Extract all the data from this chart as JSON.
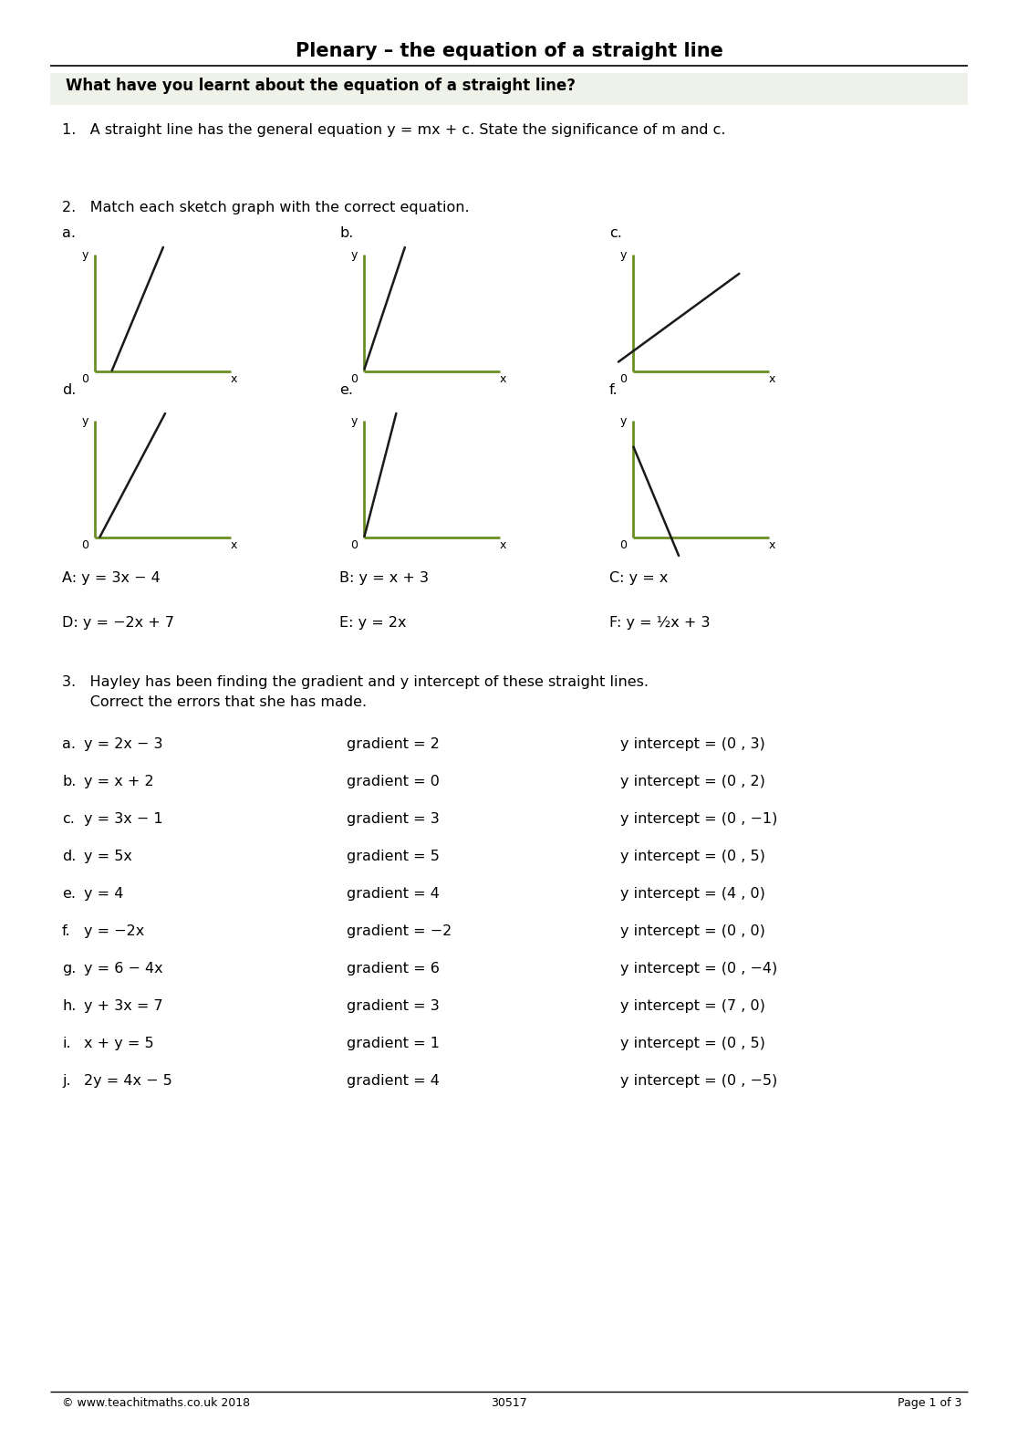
{
  "title": "Plenary – the equation of a straight line",
  "section_bg": "#eef2e8",
  "section_question": "What have you learnt about the equation of a straight line?",
  "q1_text": "1.   A straight line has the general equation y = mx + c. State the significance of m and c.",
  "q2_text": "2.   Match each sketch graph with the correct equation.",
  "graph_labels": [
    "a.",
    "b.",
    "c.",
    "d.",
    "e.",
    "f."
  ],
  "equations": [
    "A: y = 3x − 4",
    "B: y = x + 3",
    "C: y = x",
    "D: y = −2x + 7",
    "E: y = 2x",
    "F: y = ½x + 3"
  ],
  "q3_line1": "3.   Hayley has been finding the gradient and y intercept of these straight lines.",
  "q3_line2": "      Correct the errors that she has made.",
  "q3_rows": [
    {
      "label": "a.",
      "eq": "y = 2x − 3",
      "grad": "gradient = 2",
      "yint": "y intercept = (0 , 3)"
    },
    {
      "label": "b.",
      "eq": "y = x + 2",
      "grad": "gradient = 0",
      "yint": "y intercept = (0 , 2)"
    },
    {
      "label": "c.",
      "eq": "y = 3x − 1",
      "grad": "gradient = 3",
      "yint": "y intercept = (0 , −1)"
    },
    {
      "label": "d.",
      "eq": "y = 5x",
      "grad": "gradient = 5",
      "yint": "y intercept = (0 , 5)"
    },
    {
      "label": "e.",
      "eq": "y = 4",
      "grad": "gradient = 4",
      "yint": "y intercept = (4 , 0)"
    },
    {
      "label": "f.",
      "eq": "y = −2x",
      "grad": "gradient = −2",
      "yint": "y intercept = (0 , 0)"
    },
    {
      "label": "g.",
      "eq": "y = 6 − 4x",
      "grad": "gradient = 6",
      "yint": "y intercept = (0 , −4)"
    },
    {
      "label": "h.",
      "eq": "y + 3x = 7",
      "grad": "gradient = 3",
      "yint": "y intercept = (7 , 0)"
    },
    {
      "label": "i.",
      "eq": "x + y = 5",
      "grad": "gradient = 1",
      "yint": "y intercept = (0 , 5)"
    },
    {
      "label": "j.",
      "eq": "2y = 4x − 5",
      "grad": "gradient = 4",
      "yint": "y intercept = (0 , −5)"
    }
  ],
  "footer_left": "© www.teachitmaths.co.uk 2018",
  "footer_center": "30517",
  "footer_right": "Page 1 of 3",
  "axis_color": "#6b8e23",
  "line_color": "#1a1a1a",
  "graph_draw_params": [
    {
      "slope": 2.8,
      "intercept": -1.5,
      "xmin": 0.55,
      "xmax": 3.5
    },
    {
      "slope": 3.5,
      "intercept": 0.1,
      "xmin": 0.0,
      "xmax": 2.8
    },
    {
      "slope": 0.85,
      "intercept": 0.8,
      "xmin": -0.5,
      "xmax": 3.5
    },
    {
      "slope": 2.2,
      "intercept": -0.3,
      "xmin": 0.15,
      "xmax": 3.5
    },
    {
      "slope": 4.5,
      "intercept": 0.05,
      "xmin": 0.0,
      "xmax": 2.5
    },
    {
      "slope": -2.8,
      "intercept": 3.5,
      "xmin": 0.0,
      "xmax": 3.2
    }
  ]
}
